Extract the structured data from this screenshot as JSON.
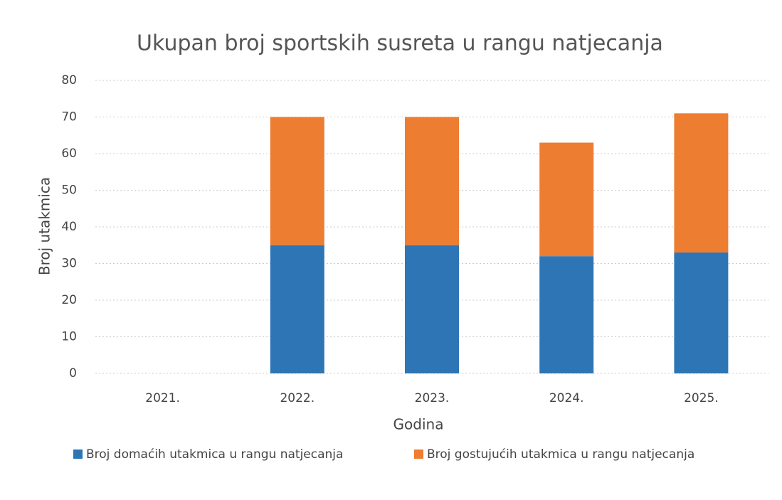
{
  "chart_data": {
    "type": "stacked_bar",
    "title": "Ukupan broj sportskih susreta u rangu natjecanja",
    "x_label": "Godina",
    "y_label": "Broj utakmica",
    "categories": [
      "2021.",
      "2022.",
      "2023.",
      "2024.",
      "2025."
    ],
    "series": [
      {
        "name": "Broj domaćih utakmica u rangu natjecanja",
        "color": "#2e75b6",
        "values": [
          0,
          35,
          35,
          32,
          33
        ]
      },
      {
        "name": "Broj gostujućih utakmica u rangu natjecanja",
        "color": "#ed7d31",
        "values": [
          0,
          35,
          35,
          31,
          38
        ]
      }
    ],
    "ylim": [
      0,
      80
    ],
    "yticks": [
      0,
      10,
      20,
      30,
      40,
      50,
      60,
      70,
      80
    ],
    "grid": true,
    "legend": "bottom"
  }
}
